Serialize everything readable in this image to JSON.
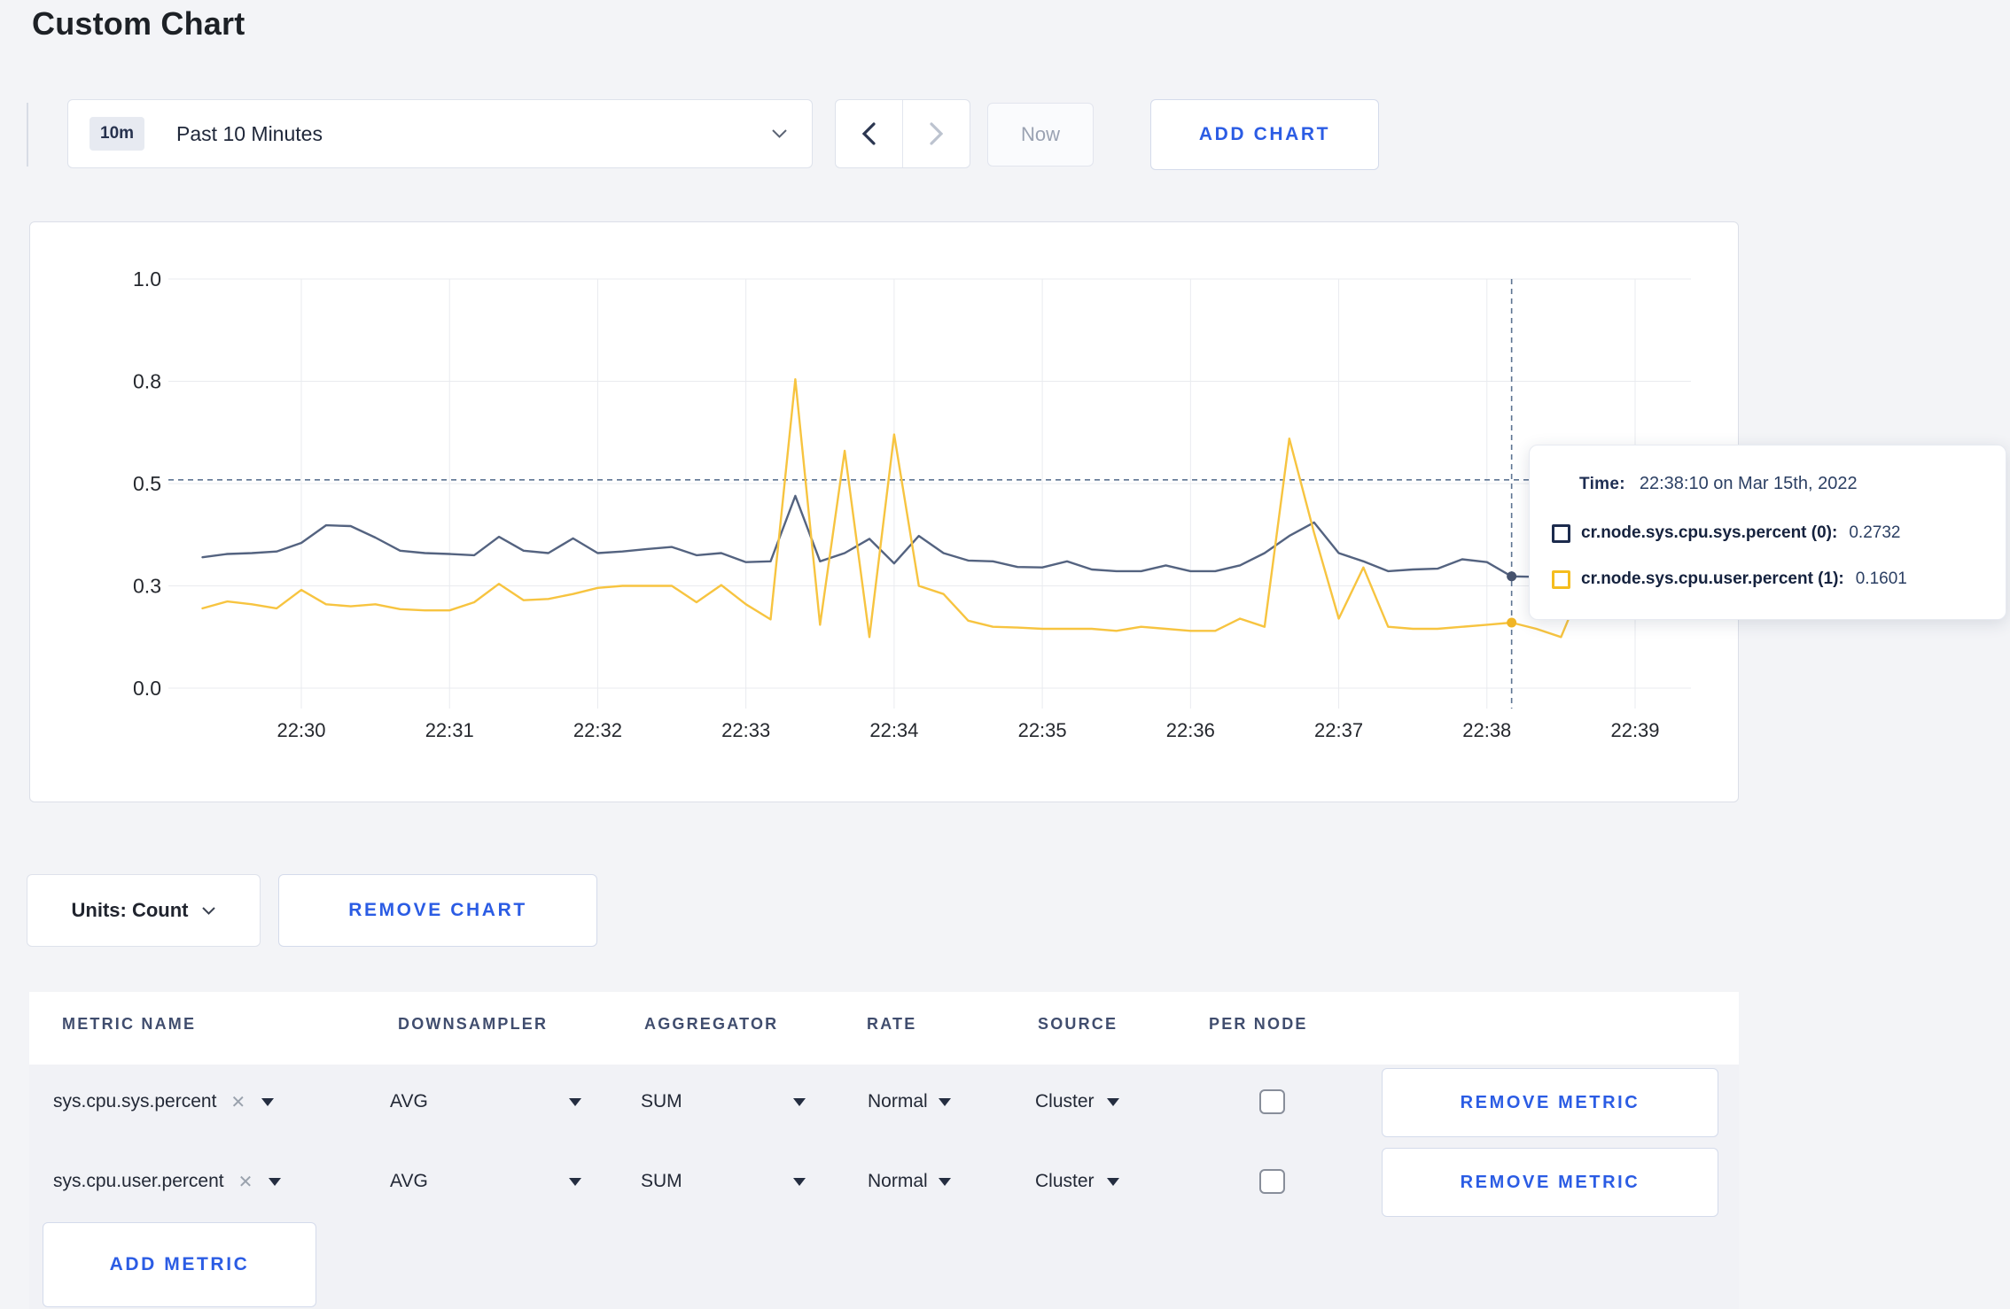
{
  "page": {
    "title": "Custom Chart"
  },
  "toolbar": {
    "timescale": {
      "badge": "10m",
      "label": "Past 10 Minutes"
    },
    "now_label": "Now",
    "add_chart_label": "ADD CHART"
  },
  "chart_data": {
    "type": "line",
    "title": "",
    "xlabel": "",
    "ylabel": "",
    "ylim": [
      0,
      1
    ],
    "grid": true,
    "sample_interval_seconds": 10,
    "first_sample_time": "22:29:20",
    "y_ticks": [
      {
        "value": 0,
        "label": "0.0"
      },
      {
        "value": 0.25,
        "label": "0.3"
      },
      {
        "value": 0.5,
        "label": "0.5"
      },
      {
        "value": 0.75,
        "label": "0.8"
      },
      {
        "value": 1.0,
        "label": "1.0"
      }
    ],
    "x_ticks": [
      {
        "seconds": 40,
        "label": "22:30"
      },
      {
        "seconds": 100,
        "label": "22:31"
      },
      {
        "seconds": 160,
        "label": "22:32"
      },
      {
        "seconds": 220,
        "label": "22:33"
      },
      {
        "seconds": 280,
        "label": "22:34"
      },
      {
        "seconds": 340,
        "label": "22:35"
      },
      {
        "seconds": 400,
        "label": "22:36"
      },
      {
        "seconds": 460,
        "label": "22:37"
      },
      {
        "seconds": 520,
        "label": "22:38"
      },
      {
        "seconds": 580,
        "label": "22:39"
      }
    ],
    "series": [
      {
        "name": "cr.node.sys.cpu.sys.percent",
        "color": "#546380",
        "values": [
          0.32,
          0.328,
          0.33,
          0.334,
          0.355,
          0.398,
          0.396,
          0.368,
          0.336,
          0.33,
          0.328,
          0.325,
          0.37,
          0.336,
          0.33,
          0.366,
          0.33,
          0.334,
          0.34,
          0.345,
          0.325,
          0.33,
          0.308,
          0.31,
          0.47,
          0.31,
          0.33,
          0.365,
          0.305,
          0.372,
          0.33,
          0.312,
          0.31,
          0.296,
          0.295,
          0.31,
          0.29,
          0.286,
          0.286,
          0.3,
          0.286,
          0.286,
          0.3,
          0.33,
          0.372,
          0.405,
          0.33,
          0.31,
          0.286,
          0.29,
          0.292,
          0.315,
          0.308,
          0.2732,
          0.272,
          0.3,
          0.312,
          0.296,
          0.286,
          0.305,
          0.3
        ]
      },
      {
        "name": "cr.node.sys.cpu.user.percent",
        "color": "#f7c440",
        "values": [
          0.195,
          0.212,
          0.205,
          0.195,
          0.24,
          0.205,
          0.2,
          0.205,
          0.193,
          0.19,
          0.19,
          0.21,
          0.255,
          0.215,
          0.218,
          0.23,
          0.245,
          0.25,
          0.25,
          0.25,
          0.21,
          0.252,
          0.205,
          0.168,
          0.755,
          0.155,
          0.58,
          0.125,
          0.62,
          0.25,
          0.23,
          0.165,
          0.15,
          0.148,
          0.145,
          0.145,
          0.145,
          0.14,
          0.15,
          0.145,
          0.14,
          0.14,
          0.17,
          0.15,
          0.61,
          0.38,
          0.17,
          0.295,
          0.15,
          0.145,
          0.145,
          0.15,
          0.155,
          0.1601,
          0.145,
          0.125,
          0.27,
          0.29,
          0.255,
          0.27,
          0.175
        ]
      }
    ],
    "hover": {
      "time_seconds": 530,
      "hline_value": 0.509,
      "dots": [
        {
          "series": "cr.node.sys.cpu.sys.percent",
          "value": 0.2732,
          "color": "#47536e"
        },
        {
          "series": "cr.node.sys.cpu.user.percent",
          "value": 0.1601,
          "color": "#f0b526"
        }
      ]
    }
  },
  "tooltip": {
    "time_label": "Time:",
    "time_value": "22:38:10 on Mar 15th, 2022",
    "rows": [
      {
        "label": "cr.node.sys.cpu.sys.percent (0):",
        "value": "0.2732",
        "color": "#1c2b4d"
      },
      {
        "label": "cr.node.sys.cpu.user.percent (1):",
        "value": "0.1601",
        "color": "#f5bd1e"
      }
    ]
  },
  "chart_controls": {
    "units_label": "Units: Count",
    "remove_chart_label": "REMOVE CHART"
  },
  "metrics_table": {
    "headers": [
      "METRIC NAME",
      "DOWNSAMPLER",
      "AGGREGATOR",
      "RATE",
      "SOURCE",
      "PER NODE"
    ],
    "x_icon": "✕",
    "rows": [
      {
        "metric": "sys.cpu.sys.percent",
        "downsampler": "AVG",
        "aggregator": "SUM",
        "rate": "Normal",
        "source": "Cluster",
        "per_node_checked": false,
        "remove_label": "REMOVE METRIC"
      },
      {
        "metric": "sys.cpu.user.percent",
        "downsampler": "AVG",
        "aggregator": "SUM",
        "rate": "Normal",
        "source": "Cluster",
        "per_node_checked": false,
        "remove_label": "REMOVE METRIC"
      }
    ],
    "add_metric_label": "ADD METRIC"
  }
}
